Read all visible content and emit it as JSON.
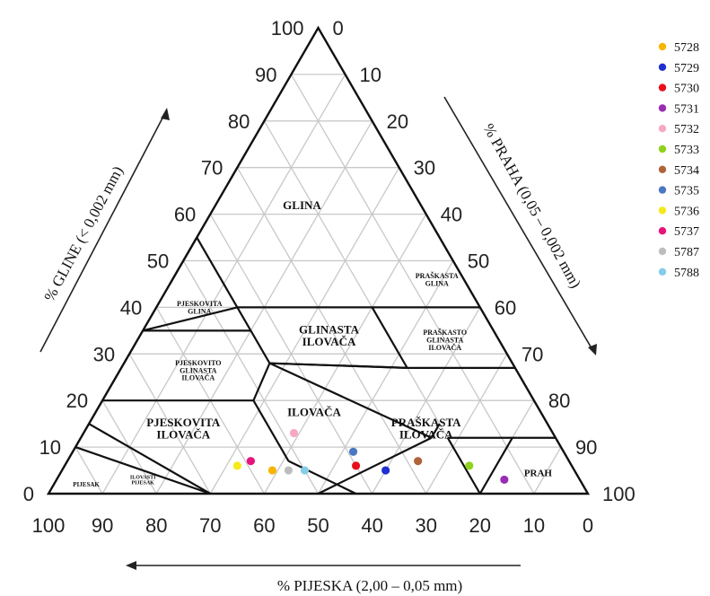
{
  "chart_data": {
    "type": "scatter",
    "subtype": "soil texture triangle",
    "axes": {
      "clay": {
        "label": "% GLINE (< 0,002 mm)",
        "ticks": [
          "0",
          "10",
          "20",
          "30",
          "40",
          "50",
          "60",
          "70",
          "80",
          "90",
          "100"
        ]
      },
      "silt": {
        "label": "% PRAHA (0,05 – 0,002 mm)",
        "ticks": [
          "0",
          "10",
          "20",
          "30",
          "40",
          "50",
          "60",
          "70",
          "80",
          "90",
          "100"
        ]
      },
      "sand": {
        "label": "% PIJESKA (2,00 – 0,05 mm)",
        "ticks": [
          "100",
          "90",
          "80",
          "70",
          "60",
          "50",
          "40",
          "30",
          "20",
          "10",
          "0"
        ]
      }
    },
    "regions": [
      {
        "name": "clay",
        "lines": [
          "GLINA"
        ],
        "sand": 22,
        "clay": 62,
        "size": 13
      },
      {
        "name": "silty-clay",
        "lines": [
          "PRAŠKASTA",
          "GLINA"
        ],
        "sand": 5,
        "clay": 46,
        "size": 8
      },
      {
        "name": "sandy-clay",
        "lines": [
          "PJESKOVITA",
          "GLINA"
        ],
        "sand": 52,
        "clay": 40,
        "size": 8
      },
      {
        "name": "silty-clay-loam",
        "lines": [
          "PRAŠKASTO",
          "GLINASTA",
          "ILOVAČA"
        ],
        "sand": 10,
        "clay": 33,
        "size": 8
      },
      {
        "name": "clay-loam",
        "lines": [
          "GLINASTA",
          "ILOVAČA"
        ],
        "sand": 31,
        "clay": 34,
        "size": 13
      },
      {
        "name": "sandy-clay-loam",
        "lines": [
          "PJESKOVITO",
          "GLINASTA",
          "ILOVAČA"
        ],
        "sand": 59,
        "clay": 26.5,
        "size": 8
      },
      {
        "name": "loam",
        "lines": [
          "ILOVAČA"
        ],
        "sand": 42,
        "clay": 17.5,
        "size": 13
      },
      {
        "name": "silt-loam",
        "lines": [
          "PRAŠKASTA",
          "ILOVAČA"
        ],
        "sand": 23,
        "clay": 14,
        "size": 13
      },
      {
        "name": "sandy-loam",
        "lines": [
          "PJESKOVITA",
          "ILOVAČA"
        ],
        "sand": 68,
        "clay": 14,
        "size": 13
      },
      {
        "name": "silt",
        "lines": [
          "PRAH"
        ],
        "sand": 7,
        "clay": 4.5,
        "size": 11
      },
      {
        "name": "sand",
        "lines": [
          "PIJESAK"
        ],
        "sand": 92,
        "clay": 2,
        "size": 7
      },
      {
        "name": "loamy-sand",
        "lines": [
          "ILOVASTI",
          "PIJESAK"
        ],
        "sand": 81,
        "clay": 3,
        "size": 6
      }
    ],
    "boundaries": [
      [
        [
          55,
          45
        ],
        [
          45,
          55
        ]
      ],
      [
        [
          45,
          40
        ],
        [
          45,
          55
        ]
      ],
      [
        [
          65,
          35
        ],
        [
          45,
          35
        ]
      ],
      [
        [
          45,
          40
        ],
        [
          65,
          35
        ]
      ],
      [
        [
          45,
          40
        ],
        [
          20,
          40
        ]
      ],
      [
        [
          20,
          40
        ],
        [
          0,
          40
        ]
      ],
      [
        [
          20,
          40
        ],
        [
          20,
          27
        ]
      ],
      [
        [
          20,
          27
        ],
        [
          0,
          27
        ]
      ],
      [
        [
          45,
          28
        ],
        [
          20,
          27
        ]
      ],
      [
        [
          80,
          20
        ],
        [
          52,
          20
        ]
      ],
      [
        [
          52,
          20
        ],
        [
          45,
          28
        ]
      ],
      [
        [
          45,
          28
        ],
        [
          45,
          40
        ]
      ],
      [
        [
          45,
          28
        ],
        [
          20,
          27
        ]
      ],
      [
        [
          52,
          20
        ],
        [
          52,
          7
        ]
      ],
      [
        [
          52,
          7
        ],
        [
          43,
          0
        ]
      ],
      [
        [
          45,
          28
        ],
        [
          23,
          12
        ]
      ],
      [
        [
          23,
          12
        ],
        [
          20,
          15
        ]
      ],
      [
        [
          23,
          12
        ],
        [
          50,
          0
        ]
      ],
      [
        [
          20,
          12
        ],
        [
          7,
          12
        ]
      ],
      [
        [
          8,
          12
        ],
        [
          20,
          0
        ]
      ],
      [
        [
          90,
          10
        ],
        [
          70,
          0
        ]
      ],
      [
        [
          85,
          15
        ],
        [
          70,
          0
        ]
      ],
      [
        [
          20,
          0
        ],
        [
          20,
          12
        ]
      ],
      [
        [
          7,
          12
        ],
        [
          0,
          12
        ]
      ]
    ],
    "samples": [
      {
        "id": "5728",
        "color": "#f7b500",
        "sand": 56,
        "clay": 5
      },
      {
        "id": "5729",
        "color": "#1f2fd1",
        "sand": 35,
        "clay": 5
      },
      {
        "id": "5730",
        "color": "#e8101a",
        "sand": 40,
        "clay": 6
      },
      {
        "id": "5731",
        "color": "#9a2db5",
        "sand": 14,
        "clay": 3
      },
      {
        "id": "5732",
        "color": "#f7a8c4",
        "sand": 48,
        "clay": 13
      },
      {
        "id": "5733",
        "color": "#8fd21d",
        "sand": 19,
        "clay": 6
      },
      {
        "id": "5734",
        "color": "#b0643a",
        "sand": 28,
        "clay": 7
      },
      {
        "id": "5735",
        "color": "#4b78c2",
        "sand": 39,
        "clay": 9
      },
      {
        "id": "5736",
        "color": "#f5e91a",
        "sand": 62,
        "clay": 6
      },
      {
        "id": "5737",
        "color": "#e8127a",
        "sand": 59,
        "clay": 7
      },
      {
        "id": "5787",
        "color": "#bdbdbd",
        "sand": 53,
        "clay": 5
      },
      {
        "id": "5788",
        "color": "#86cde8",
        "sand": 50,
        "clay": 5
      }
    ]
  }
}
